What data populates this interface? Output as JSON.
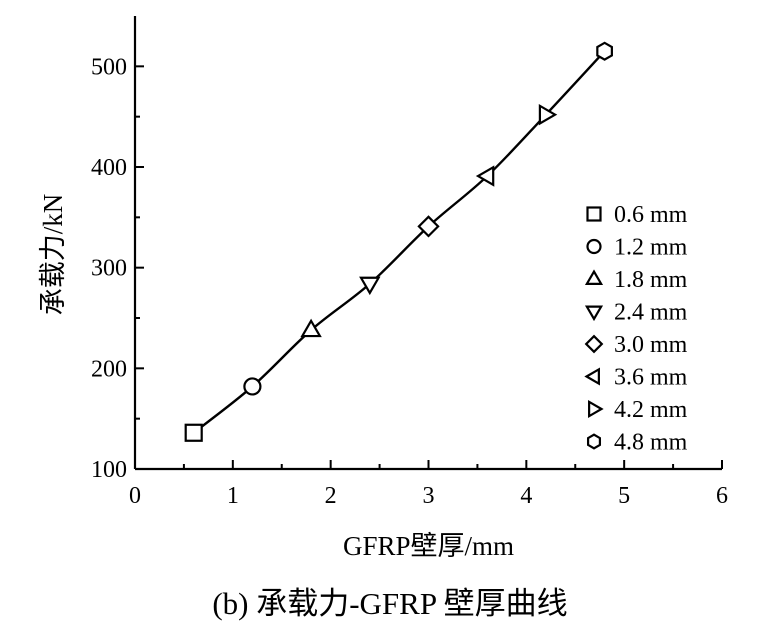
{
  "chart_data": {
    "type": "line",
    "caption": "(b) 承载力-GFRP 壁厚曲线",
    "xlabel": "GFRP壁厚/mm",
    "ylabel": "承载力/kN",
    "xlim": [
      0,
      6
    ],
    "ylim": [
      100,
      550
    ],
    "x_ticks": [
      "0",
      "1",
      "2",
      "3",
      "4",
      "5",
      "6"
    ],
    "y_ticks": [
      "100",
      "200",
      "300",
      "400",
      "500"
    ],
    "x_tick_values": [
      0,
      1,
      2,
      3,
      4,
      5,
      6
    ],
    "y_tick_values": [
      100,
      200,
      300,
      400,
      500
    ],
    "grid": false,
    "legend_position": "right",
    "series": [
      {
        "name": "0.6 mm",
        "marker": "square",
        "x": 0.6,
        "y": 136
      },
      {
        "name": "1.2 mm",
        "marker": "circle",
        "x": 1.2,
        "y": 182
      },
      {
        "name": "1.8 mm",
        "marker": "triangle-up",
        "x": 1.8,
        "y": 238
      },
      {
        "name": "2.4 mm",
        "marker": "triangle-down",
        "x": 2.4,
        "y": 284
      },
      {
        "name": "3.0 mm",
        "marker": "diamond",
        "x": 3.0,
        "y": 341
      },
      {
        "name": "3.6 mm",
        "marker": "triangle-left",
        "x": 3.6,
        "y": 391
      },
      {
        "name": "4.2 mm",
        "marker": "triangle-right",
        "x": 4.2,
        "y": 452
      },
      {
        "name": "4.8 mm",
        "marker": "hexagon",
        "x": 4.8,
        "y": 515
      }
    ],
    "line_color": "#000000"
  }
}
